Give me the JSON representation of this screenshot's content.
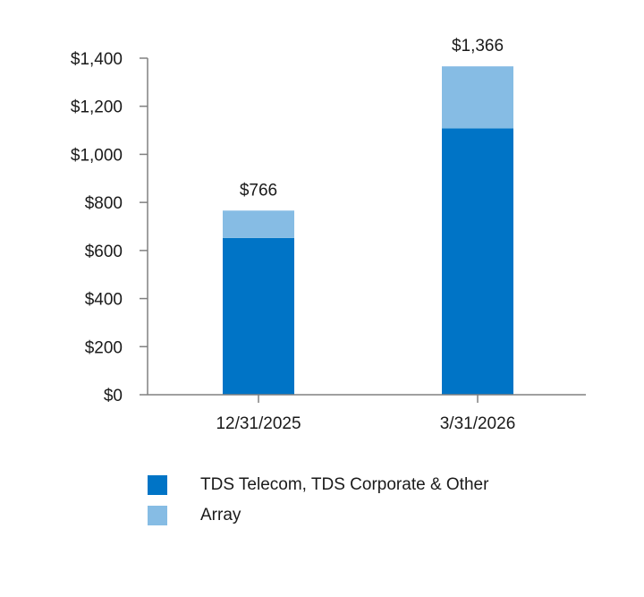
{
  "chart_data": {
    "type": "bar",
    "stacked": true,
    "categories": [
      "12/31/2025",
      "3/31/2026"
    ],
    "series": [
      {
        "name": "TDS Telecom, TDS Corporate & Other",
        "values": [
          652,
          1108
        ],
        "color": "#0074c6"
      },
      {
        "name": "Array",
        "values": [
          114,
          258
        ],
        "color": "#86bce4"
      }
    ],
    "totals": [
      766,
      1366
    ],
    "total_labels": [
      "$766",
      "$1,366"
    ],
    "y_ticks": [
      0,
      200,
      400,
      600,
      800,
      1000,
      1200,
      1400
    ],
    "y_tick_labels": [
      "$0",
      "$200",
      "$400",
      "$600",
      "$800",
      "$1,000",
      "$1,200",
      "$1,400"
    ],
    "ylim": [
      0,
      1400
    ],
    "grid": false,
    "legend_position": "bottom",
    "axis_color": "#808080"
  }
}
